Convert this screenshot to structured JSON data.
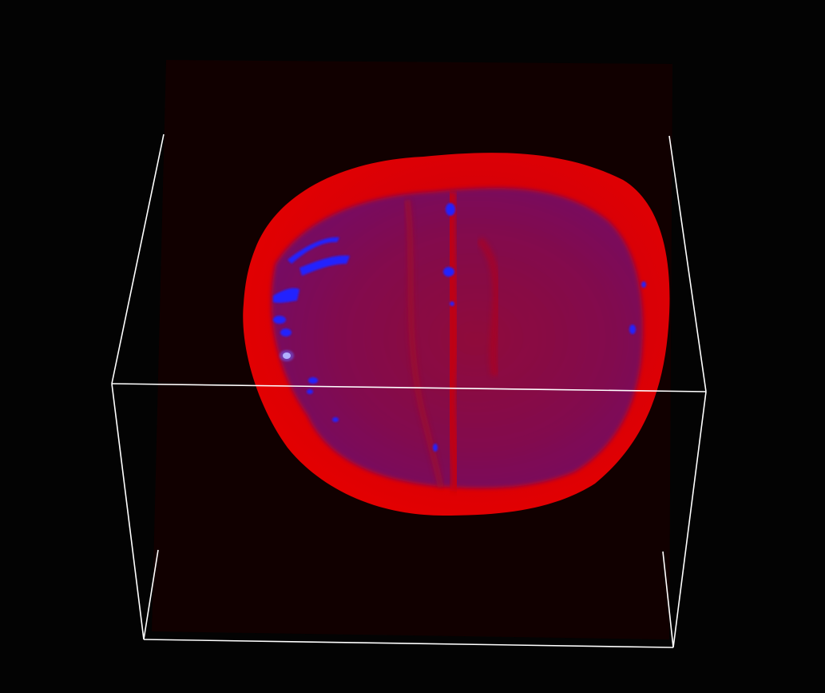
{
  "scene": {
    "background_color": "#030303",
    "volume_tint_color": "#1a0000",
    "outer_shell_color": "#e00000",
    "inner_tissue_color": "#7a0a4a",
    "highlight_color": "#1a1aff",
    "hotspot_color": "#ffffff",
    "bounding_box_color": "#ffffff"
  }
}
